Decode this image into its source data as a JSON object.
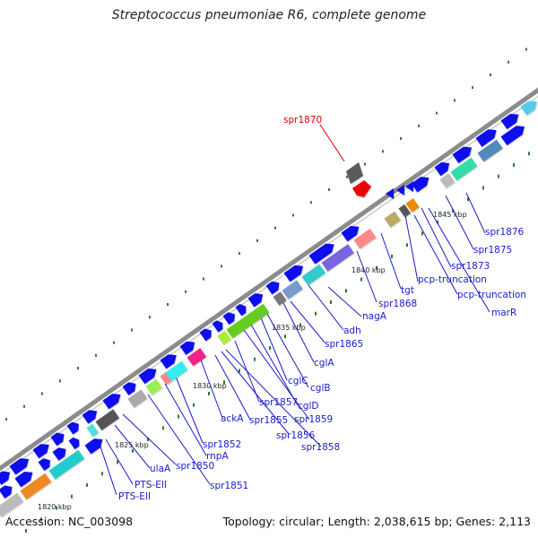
{
  "title": "Streptococcus pneumoniae R6, complete genome",
  "footer": {
    "accession": "Accession: NC_003098",
    "summary": "Topology: circular; Length: 2,038,615 bp; Genes: 2,113"
  },
  "colors": {
    "backbone": "#8a8a8a",
    "ticks": "#2e7d2e",
    "label": "#1a1acc",
    "highlight": "#dd0000",
    "gene_default": "#1010ee"
  },
  "scale_labels": [
    "1820 kbp",
    "1825 kbp",
    "1830 kbp",
    "1835 kbp",
    "1840 kbp",
    "1845 kbp"
  ],
  "gene_labels": [
    "spr1870",
    "spr1876",
    "spr1875",
    "spr1873",
    "pcp-truncation",
    "pcp-truncation",
    "marR",
    "tgt",
    "spr1868",
    "nagA",
    "adh",
    "spr1865",
    "cglA",
    "cglB",
    "cglC",
    "cglD",
    "spr1859",
    "spr1858",
    "spr1857",
    "spr1856",
    "spr1855",
    "ackA",
    "spr1852",
    "rnpA",
    "spr1851",
    "spr1850",
    "ulaA",
    "PTS-EII",
    "PTS-EII"
  ]
}
